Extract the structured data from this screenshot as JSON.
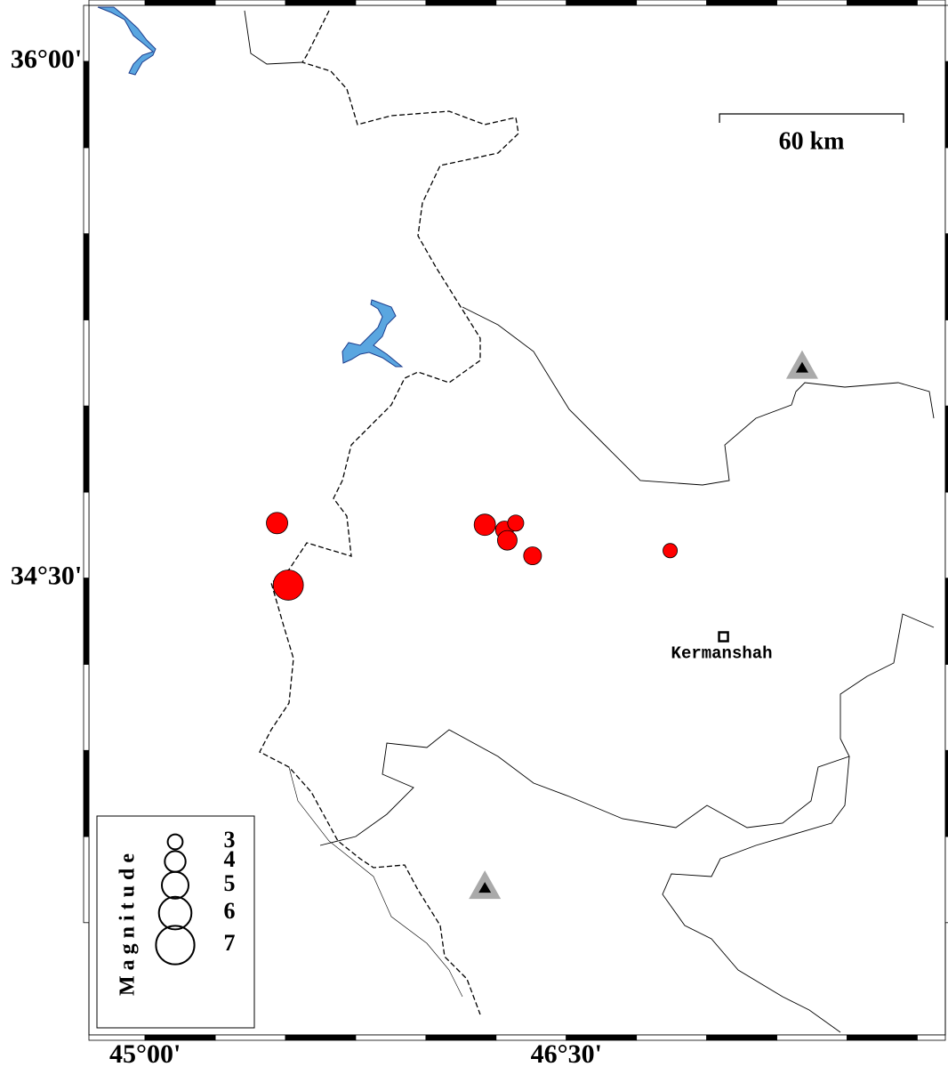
{
  "map": {
    "xlim": [
      44.8,
      47.85
    ],
    "ylim": [
      33.174,
      36.163
    ],
    "xticks": [
      {
        "value": 45,
        "label": "45°00'"
      },
      {
        "value": 46.5,
        "label": "46°30'"
      }
    ],
    "yticks": [
      {
        "value": 36,
        "label": "36°00'"
      },
      {
        "value": 34.5,
        "label": "34°30'"
      }
    ],
    "scale_bar": {
      "km": 60,
      "label": "60 km"
    },
    "city": {
      "name": "Kermanshah",
      "lon": 47.06,
      "lat": 34.33
    },
    "stations": [
      {
        "lon": 47.34,
        "lat": 35.11
      },
      {
        "lon": 46.21,
        "lat": 33.6
      }
    ],
    "events": {
      "color": "#ff0000",
      "lon": [
        45.47,
        45.51,
        46.21,
        46.28,
        46.32,
        46.29,
        46.38,
        46.87
      ],
      "lat": [
        34.66,
        34.48,
        34.655,
        34.64,
        34.66,
        34.61,
        34.565,
        34.58
      ],
      "mag": [
        4.1,
        5.6,
        4.1,
        3.5,
        3.2,
        3.8,
        3.5,
        2.9
      ]
    },
    "legend": {
      "title": "Magnitude",
      "sizes": [
        3,
        4,
        5,
        6,
        7
      ]
    }
  }
}
